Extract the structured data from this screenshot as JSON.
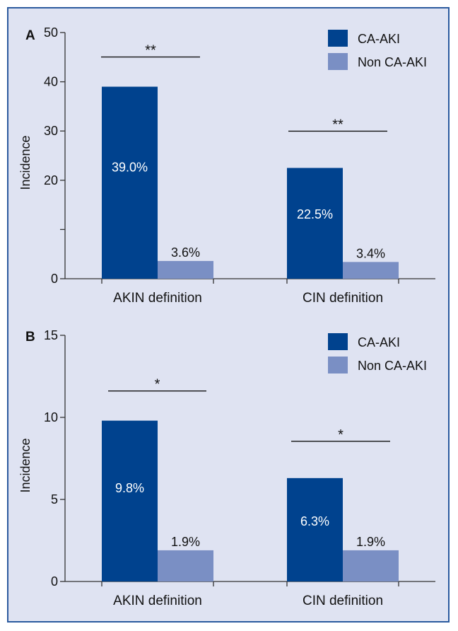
{
  "chart_data": [
    {
      "type": "bar",
      "panel": "A",
      "categories": [
        "AKIN definition",
        "CIN definition"
      ],
      "series": [
        {
          "name": "CA-AKI",
          "values": [
            39.0,
            22.5
          ],
          "labels": [
            "39.0%",
            "22.5%"
          ],
          "color": "#00428e"
        },
        {
          "name": "Non CA-AKI",
          "values": [
            3.6,
            3.4
          ],
          "labels": [
            "3.6%",
            "3.4%"
          ],
          "color": "#7a8fc4"
        }
      ],
      "ylabel": "Incidence",
      "xlabel": "",
      "ylim": [
        0,
        50
      ],
      "yticks": [
        0,
        20,
        30,
        40,
        50
      ],
      "yticks_unlabeled": [
        10
      ],
      "significance": [
        "**",
        "**"
      ],
      "legend_position": "top-right",
      "grid": false
    },
    {
      "type": "bar",
      "panel": "B",
      "categories": [
        "AKIN definition",
        "CIN definition"
      ],
      "series": [
        {
          "name": "CA-AKI",
          "values": [
            9.8,
            6.3
          ],
          "labels": [
            "9.8%",
            "6.3%"
          ],
          "color": "#00428e"
        },
        {
          "name": "Non CA-AKI",
          "values": [
            1.9,
            1.9
          ],
          "labels": [
            "1.9%",
            "1.9%"
          ],
          "color": "#7a8fc4"
        }
      ],
      "ylabel": "Incidence",
      "xlabel": "",
      "ylim": [
        0,
        15
      ],
      "yticks": [
        0,
        5,
        10,
        15
      ],
      "yticks_unlabeled": [],
      "significance": [
        "*",
        "*"
      ],
      "legend_position": "top-right",
      "grid": false
    }
  ]
}
